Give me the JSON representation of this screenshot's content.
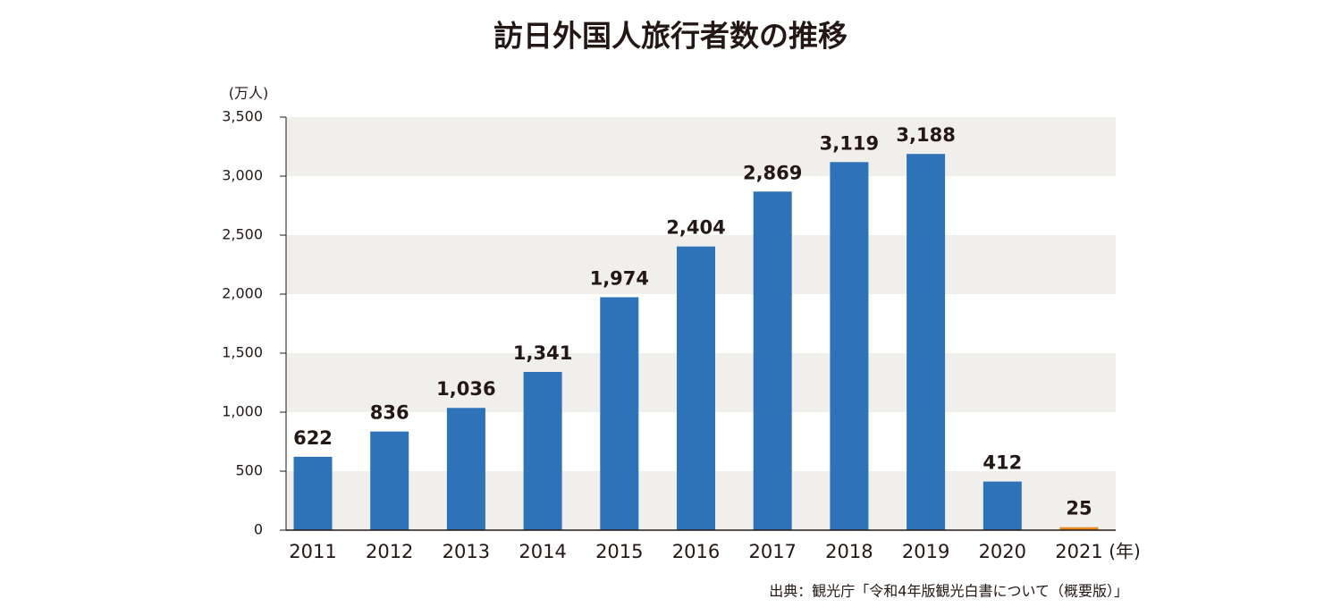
{
  "chart_data": {
    "type": "bar",
    "title": "訪日外国人旅行者数の推移",
    "y_unit": "(万人)",
    "x_unit": "(年)",
    "source": "出典：観光庁「令和4年版観光白書について（概要版）」",
    "categories": [
      "2011",
      "2012",
      "2013",
      "2014",
      "2015",
      "2016",
      "2017",
      "2018",
      "2019",
      "2020",
      "2021"
    ],
    "values": [
      622,
      836,
      1036,
      1341,
      1974,
      2404,
      2869,
      3119,
      3188,
      412,
      25
    ],
    "value_labels": [
      "622",
      "836",
      "1,036",
      "1,341",
      "1,974",
      "2,404",
      "2,869",
      "3,119",
      "3,188",
      "412",
      "25"
    ],
    "colors": [
      "#2e72b8",
      "#2e72b8",
      "#2e72b8",
      "#2e72b8",
      "#2e72b8",
      "#2e72b8",
      "#2e72b8",
      "#2e72b8",
      "#2e72b8",
      "#2e72b8",
      "#e8891e"
    ],
    "ylim": [
      0,
      3500
    ],
    "yticks": [
      0,
      500,
      {
        "value": 1000,
        "label": "1,000"
      },
      {
        "value": 1500,
        "label": "1,500"
      },
      {
        "value": 2000,
        "label": "2,000"
      },
      {
        "value": 2500,
        "label": "2,500"
      },
      {
        "value": 3000,
        "label": "3,000"
      },
      {
        "value": 3500,
        "label": "3,500"
      }
    ],
    "grid": "bands"
  }
}
